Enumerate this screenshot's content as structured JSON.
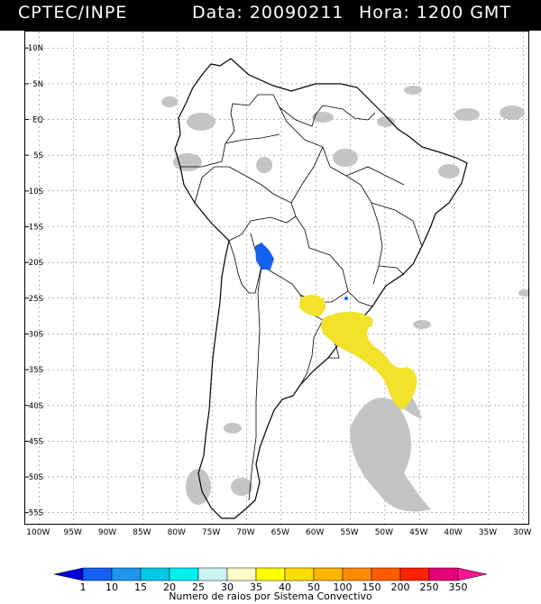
{
  "header": {
    "org": "CPTEC/INPE",
    "date_text": "Data: 20090211",
    "time_text": "Hora: 1200 GMT"
  },
  "map": {
    "lat_labels": [
      "10N",
      "5N",
      "EQ",
      "5S",
      "10S",
      "15S",
      "20S",
      "25S",
      "30S",
      "35S",
      "40S",
      "45S",
      "50S",
      "55S"
    ],
    "lon_labels": [
      "100W",
      "95W",
      "90W",
      "85W",
      "80W",
      "75W",
      "70W",
      "65W",
      "60W",
      "55W",
      "50W",
      "45W",
      "40W",
      "35W",
      "30W"
    ],
    "lat_values": [
      10,
      5,
      0,
      -5,
      -10,
      -15,
      -20,
      -25,
      -30,
      -35,
      -40,
      -45,
      -50,
      -55
    ],
    "lon_values": [
      -100,
      -95,
      -90,
      -85,
      -80,
      -75,
      -70,
      -65,
      -60,
      -55,
      -50,
      -45,
      -40,
      -35,
      -30
    ],
    "grid": true
  },
  "colorbar": {
    "labels": [
      "1",
      "10",
      "15",
      "20",
      "25",
      "30",
      "35",
      "40",
      "50",
      "100",
      "150",
      "200",
      "250",
      "350"
    ],
    "colors": [
      "#0000d8",
      "#1460f0",
      "#1e96f0",
      "#00c8e6",
      "#00f0f0",
      "#c8f5f0",
      "#fffac8",
      "#ffff00",
      "#ffdc00",
      "#ffb400",
      "#ff8c00",
      "#ff5a00",
      "#ff2000",
      "#e6007a",
      "#ff1493"
    ],
    "title": "Numero de raios por Sistema Convectivo"
  },
  "colors": {
    "cloud_gray": "#bebebe",
    "header_bg": "#000000"
  }
}
